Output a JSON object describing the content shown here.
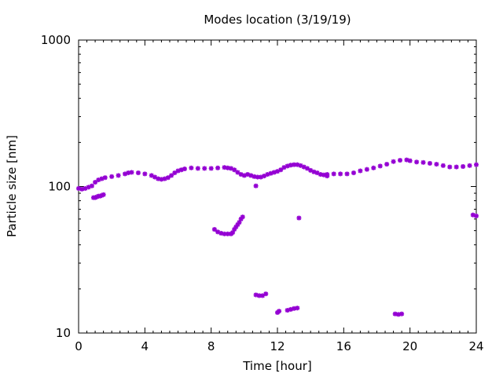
{
  "chart_data": {
    "type": "scatter",
    "title": "Modes location (3/19/19)",
    "xlabel": "Time [hour]",
    "ylabel": "Particle size [nm]",
    "xlim": [
      0,
      24
    ],
    "ylim": [
      10,
      1000
    ],
    "yscale": "log",
    "x_ticks": [
      0,
      4,
      8,
      12,
      16,
      20,
      24
    ],
    "x_tick_labels": [
      "0",
      "4",
      "8",
      "12",
      "16",
      "20",
      "24"
    ],
    "y_ticks": [
      10,
      100,
      1000
    ],
    "y_tick_labels": [
      "10",
      "100",
      "1000"
    ],
    "grid": false,
    "legend": false,
    "marker_color": "#9400d3",
    "series": [
      {
        "points": [
          [
            0.0,
            97
          ],
          [
            0.2,
            96
          ],
          [
            0.4,
            97
          ],
          [
            0.6,
            99
          ],
          [
            0.8,
            101
          ],
          [
            1.0,
            107
          ],
          [
            1.2,
            111
          ],
          [
            1.4,
            113
          ],
          [
            1.6,
            115
          ],
          [
            2.0,
            117
          ],
          [
            2.4,
            119
          ],
          [
            2.8,
            122
          ],
          [
            3.0,
            124
          ],
          [
            3.2,
            125
          ],
          [
            3.6,
            124
          ],
          [
            4.0,
            122
          ],
          [
            4.4,
            119
          ],
          [
            4.6,
            116
          ],
          [
            4.8,
            113
          ],
          [
            5.0,
            112
          ],
          [
            5.2,
            113
          ],
          [
            5.4,
            115
          ],
          [
            5.6,
            119
          ],
          [
            5.8,
            124
          ],
          [
            6.0,
            128
          ],
          [
            6.2,
            130
          ],
          [
            6.4,
            132
          ],
          [
            6.8,
            134
          ],
          [
            7.2,
            133
          ],
          [
            7.6,
            133
          ],
          [
            8.0,
            133
          ],
          [
            8.4,
            134
          ],
          [
            8.8,
            135
          ],
          [
            9.0,
            134
          ],
          [
            9.2,
            133
          ],
          [
            9.4,
            130
          ],
          [
            9.6,
            125
          ],
          [
            9.8,
            121
          ],
          [
            10.0,
            119
          ],
          [
            10.2,
            121
          ],
          [
            10.4,
            119
          ],
          [
            10.6,
            117
          ],
          [
            10.8,
            116
          ],
          [
            11.0,
            116
          ],
          [
            11.2,
            118
          ],
          [
            11.4,
            121
          ],
          [
            11.6,
            123
          ],
          [
            11.8,
            125
          ],
          [
            12.0,
            127
          ],
          [
            12.2,
            130
          ],
          [
            12.4,
            135
          ],
          [
            12.6,
            138
          ],
          [
            12.8,
            140
          ],
          [
            13.0,
            141
          ],
          [
            13.2,
            141
          ],
          [
            13.4,
            139
          ],
          [
            13.6,
            136
          ],
          [
            13.8,
            133
          ],
          [
            14.0,
            129
          ],
          [
            14.2,
            126
          ],
          [
            14.4,
            124
          ],
          [
            14.6,
            121
          ],
          [
            14.8,
            120
          ],
          [
            15.0,
            121
          ],
          [
            15.4,
            122
          ],
          [
            15.8,
            122
          ],
          [
            16.2,
            122
          ],
          [
            16.6,
            124
          ],
          [
            17.0,
            128
          ],
          [
            17.4,
            131
          ],
          [
            17.8,
            134
          ],
          [
            18.2,
            138
          ],
          [
            18.6,
            142
          ],
          [
            19.0,
            148
          ],
          [
            19.4,
            151
          ],
          [
            19.8,
            152
          ],
          [
            20.0,
            150
          ],
          [
            20.4,
            147
          ],
          [
            20.8,
            146
          ],
          [
            21.2,
            144
          ],
          [
            21.6,
            142
          ],
          [
            22.0,
            139
          ],
          [
            22.4,
            136
          ],
          [
            22.8,
            136
          ],
          [
            23.2,
            137
          ],
          [
            23.6,
            139
          ],
          [
            24.0,
            141
          ]
        ]
      },
      {
        "points": [
          [
            0.9,
            84
          ],
          [
            1.0,
            84
          ],
          [
            1.1,
            85
          ],
          [
            1.2,
            86
          ],
          [
            1.3,
            86
          ],
          [
            1.4,
            87
          ],
          [
            1.5,
            88
          ],
          [
            8.2,
            51
          ],
          [
            8.4,
            49
          ],
          [
            8.6,
            48
          ],
          [
            8.8,
            47.5
          ],
          [
            9.0,
            47.5
          ],
          [
            9.2,
            47.5
          ],
          [
            9.3,
            48.5
          ],
          [
            9.4,
            51
          ],
          [
            9.5,
            53
          ],
          [
            9.6,
            55
          ],
          [
            9.7,
            57
          ],
          [
            9.8,
            60
          ],
          [
            9.9,
            62
          ],
          [
            10.7,
            101
          ],
          [
            15.0,
            118
          ],
          [
            13.3,
            61
          ],
          [
            23.8,
            64
          ],
          [
            24.0,
            63
          ]
        ]
      },
      {
        "points": [
          [
            10.7,
            18.2
          ],
          [
            10.9,
            18.0
          ],
          [
            11.1,
            18.0
          ],
          [
            11.3,
            18.5
          ],
          [
            12.0,
            13.8
          ],
          [
            12.1,
            14.1
          ],
          [
            12.6,
            14.3
          ],
          [
            12.8,
            14.5
          ],
          [
            13.0,
            14.7
          ],
          [
            13.2,
            14.8
          ],
          [
            19.1,
            13.5
          ],
          [
            19.3,
            13.4
          ],
          [
            19.5,
            13.5
          ]
        ]
      }
    ]
  }
}
